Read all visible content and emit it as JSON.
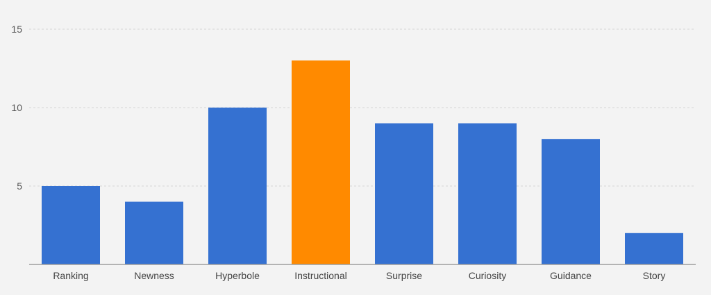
{
  "chart_data": {
    "type": "bar",
    "categories": [
      "Ranking",
      "Newness",
      "Hyperbole",
      "Instructional",
      "Surprise",
      "Curiosity",
      "Guidance",
      "Story"
    ],
    "values": [
      5,
      4,
      10,
      13,
      9,
      9,
      8,
      2
    ],
    "bar_colors": [
      "#3571d1",
      "#3571d1",
      "#3571d1",
      "#ff8a00",
      "#3571d1",
      "#3571d1",
      "#3571d1",
      "#3571d1"
    ],
    "title": "",
    "xlabel": "",
    "ylabel": "",
    "ylim": [
      0,
      15
    ],
    "y_ticks": [
      5,
      10,
      15
    ],
    "grid": true,
    "legend": "none"
  }
}
